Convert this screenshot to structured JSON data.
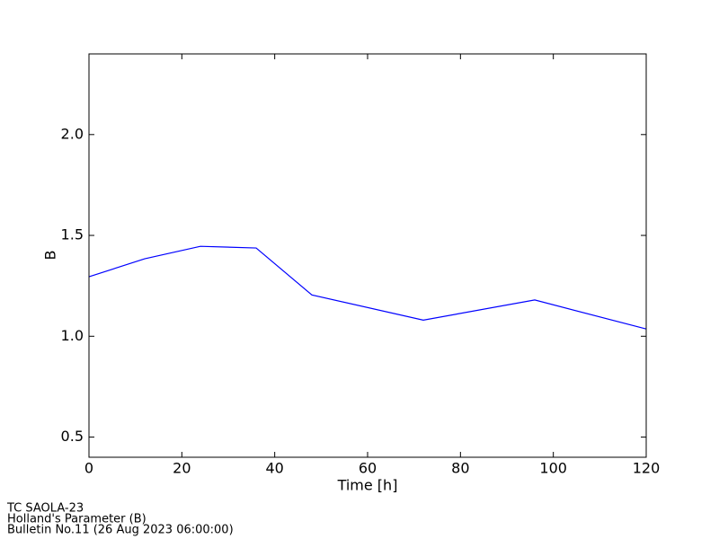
{
  "chart_data": {
    "type": "line",
    "xlabel": "Time [h]",
    "ylabel": "B",
    "x": [
      0,
      12,
      24,
      36,
      48,
      72,
      96,
      120
    ],
    "series": [
      {
        "name": "B",
        "color": "#0000ff",
        "values": [
          1.295,
          1.384,
          1.446,
          1.4375,
          1.205,
          1.08,
          1.18,
          1.036
        ]
      }
    ],
    "xlim": [
      0,
      120
    ],
    "xticks": [
      0,
      20,
      40,
      60,
      80,
      100,
      120
    ],
    "ylim": [
      0.4,
      2.4
    ],
    "yticks": [
      0.5,
      {
        "value": 1.0,
        "label": "1.0"
      },
      1.5,
      {
        "value": 2.0,
        "label": "2.0"
      }
    ],
    "grid": false,
    "annotations": [
      "TC SAOLA-23",
      "Holland's Parameter (B)",
      "Bulletin No.11 (26 Aug 2023  06:00:00)"
    ]
  }
}
